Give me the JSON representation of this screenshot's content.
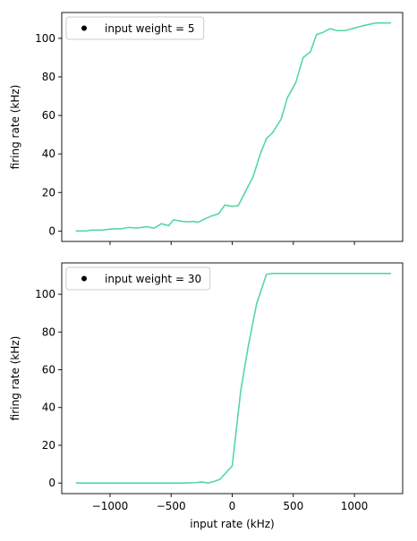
{
  "chart_data": [
    {
      "type": "line",
      "legend": {
        "label": "input weight = 5",
        "marker_color": "#000000",
        "placement": "upper-left"
      },
      "xlabel": "",
      "ylabel": "firing rate (kHz)",
      "xlim": [
        -1395,
        1395
      ],
      "ylim": [
        -5.4,
        113.4
      ],
      "xticks": [
        -1000,
        -500,
        0,
        500,
        1000
      ],
      "show_xtick_labels": false,
      "yticks": [
        0,
        20,
        40,
        60,
        80,
        100
      ],
      "ytick_labels": [
        "0",
        "20",
        "40",
        "60",
        "80",
        "100"
      ],
      "grid": false,
      "line_color": "#55d8a0",
      "series": [
        {
          "x": [
            -1280,
            -1200,
            -1150,
            -1060,
            -1000,
            -900,
            -850,
            -780,
            -700,
            -640,
            -580,
            -520,
            -480,
            -410,
            -360,
            -320,
            -280,
            -220,
            -170,
            -110,
            -60,
            0,
            50,
            120,
            170,
            230,
            280,
            330,
            400,
            450,
            520,
            580,
            640,
            690,
            740,
            800,
            860,
            920,
            980,
            1040,
            1100,
            1180,
            1240,
            1300
          ],
          "y": [
            0,
            0,
            0.5,
            0.5,
            1,
            1.2,
            1.9,
            1.5,
            2.3,
            1.5,
            3.8,
            2.8,
            5.8,
            5,
            4.8,
            5,
            4.5,
            6.4,
            7.8,
            9,
            13.5,
            12.8,
            13.2,
            22,
            28,
            40,
            48,
            51,
            58,
            69,
            77,
            90,
            93,
            102,
            103,
            105,
            104,
            104,
            105,
            106,
            107,
            108,
            108,
            108
          ]
        }
      ]
    },
    {
      "type": "line",
      "legend": {
        "label": "input weight = 30",
        "marker_color": "#000000",
        "placement": "upper-left"
      },
      "xlabel": "input rate (kHz)",
      "ylabel": "firing rate (kHz)",
      "xlim": [
        -1395,
        1395
      ],
      "ylim": [
        -5.6,
        116.6
      ],
      "xticks": [
        -1000,
        -500,
        0,
        500,
        1000
      ],
      "xtick_labels": [
        "−1000",
        "−500",
        "0",
        "500",
        "1000"
      ],
      "show_xtick_labels": true,
      "yticks": [
        0,
        20,
        40,
        60,
        80,
        100
      ],
      "ytick_labels": [
        "0",
        "20",
        "40",
        "60",
        "80",
        "100"
      ],
      "grid": false,
      "line_color": "#55d8a0",
      "series": [
        {
          "x": [
            -1280,
            -400,
            -300,
            -250,
            -200,
            -150,
            -100,
            0,
            70,
            130,
            200,
            280,
            330,
            400,
            600,
            900,
            1300
          ],
          "y": [
            0,
            0,
            0.2,
            0.6,
            0,
            0.8,
            2,
            9,
            49,
            72,
            95,
            110.5,
            111,
            111,
            111,
            111,
            111
          ]
        }
      ]
    }
  ]
}
